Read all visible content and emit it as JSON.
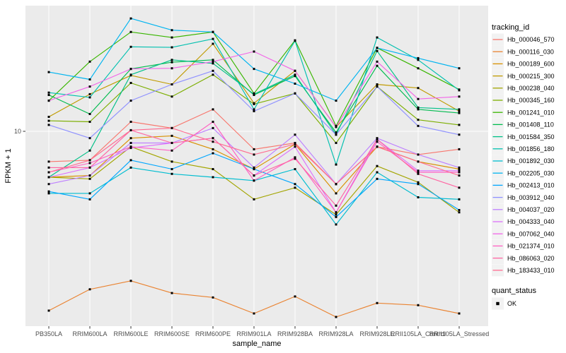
{
  "chart_data": {
    "type": "line",
    "title": "",
    "xlabel": "sample_name",
    "ylabel": "FPKM + 1",
    "y_scale": "log10",
    "y_tick_labels": [
      "10"
    ],
    "ylim": [
      1.7,
      31
    ],
    "grid": "on",
    "panel_bg": "#EBEBEB",
    "grid_color": "#FFFFFF",
    "tick_label_color": "#4D4D4D",
    "point_color": "#000000",
    "legend_position": "right",
    "legend_title": "tracking_id",
    "quant_legend": {
      "title": "quant_status",
      "items": [
        "OK"
      ]
    },
    "categories": [
      "PB350LA",
      "RRIM600LA",
      "RRIM600LE",
      "RRIM600SE",
      "RRIM600PE",
      "RRIM901LA",
      "RRIM928BA",
      "RRIM928LA",
      "RRIM928LE",
      "RRII105LA_Control",
      "RRII105LA_Stressed"
    ],
    "series": [
      {
        "name": "Hb_000046_570",
        "color": "#F8766D",
        "values": [
          7.6,
          7.7,
          10.9,
          10.3,
          12.2,
          8.5,
          9.0,
          6.2,
          8.7,
          8.1,
          8.5
        ]
      },
      {
        "name": "Hb_000116_030",
        "color": "#EA8331",
        "values": [
          1.97,
          2.39,
          2.58,
          2.31,
          2.22,
          1.92,
          2.24,
          1.86,
          2.11,
          2.07,
          1.92
        ]
      },
      {
        "name": "Hb_000189_600",
        "color": "#D89000",
        "values": [
          6.6,
          6.7,
          9.4,
          9.6,
          8.5,
          7.1,
          8.9,
          5.7,
          8.7,
          7.6,
          7.1
        ]
      },
      {
        "name": "Hb_000215_300",
        "color": "#C09B00",
        "values": [
          11.4,
          14.0,
          16.6,
          15.3,
          22.1,
          12.9,
          17.3,
          10.4,
          15.3,
          14.8,
          12.0
        ]
      },
      {
        "name": "Hb_000238_040",
        "color": "#A3A500",
        "values": [
          6.6,
          6.5,
          8.7,
          7.6,
          7.1,
          5.4,
          6.0,
          4.7,
          7.3,
          6.3,
          4.8
        ]
      },
      {
        "name": "Hb_000345_160",
        "color": "#7CAE00",
        "values": [
          11.0,
          10.9,
          15.5,
          13.7,
          16.7,
          12.8,
          14.1,
          9.0,
          15.0,
          11.1,
          10.6
        ]
      },
      {
        "name": "Hb_001241_010",
        "color": "#39B600",
        "values": [
          13.2,
          18.8,
          24.6,
          23.4,
          24.6,
          14.1,
          22.8,
          10.5,
          21.3,
          17.7,
          14.6
        ]
      },
      {
        "name": "Hb_001408_110",
        "color": "#00BB4E",
        "values": [
          13.9,
          11.7,
          17.6,
          18.7,
          19.1,
          13.9,
          16.5,
          9.9,
          18.1,
          12.2,
          11.8
        ]
      },
      {
        "name": "Hb_001584_350",
        "color": "#00C087",
        "values": [
          6.6,
          8.4,
          16.7,
          19.1,
          18.5,
          14.0,
          16.7,
          9.7,
          20.7,
          12.4,
          12.2
        ]
      },
      {
        "name": "Hb_001856_180",
        "color": "#00C0AF",
        "values": [
          14.2,
          13.6,
          21.5,
          21.4,
          23.1,
          12.2,
          22.7,
          7.4,
          23.4,
          19.1,
          14.5
        ]
      },
      {
        "name": "Hb_001892_030",
        "color": "#00BDD0",
        "values": [
          5.7,
          5.7,
          7.2,
          6.8,
          6.6,
          6.4,
          7.1,
          4.3,
          6.9,
          5.5,
          5.4
        ]
      },
      {
        "name": "Hb_002205_030",
        "color": "#00B4F0",
        "values": [
          17.1,
          16.0,
          27.8,
          25.0,
          24.6,
          17.6,
          15.4,
          13.2,
          21.3,
          19.4,
          17.7
        ]
      },
      {
        "name": "Hb_002413_010",
        "color": "#00A6FF",
        "values": [
          5.8,
          5.4,
          7.7,
          7.1,
          8.2,
          7.1,
          6.2,
          4.6,
          6.5,
          6.2,
          4.9
        ]
      },
      {
        "name": "Hb_003912_040",
        "color": "#8F91FF",
        "values": [
          10.6,
          9.4,
          13.2,
          15.3,
          17.3,
          12.0,
          14.1,
          9.7,
          15.0,
          10.5,
          9.7
        ]
      },
      {
        "name": "Hb_004037_020",
        "color": "#BE80FF",
        "values": [
          6.2,
          6.7,
          9.0,
          9.0,
          10.3,
          7.2,
          9.7,
          6.2,
          9.4,
          8.1,
          7.2
        ]
      },
      {
        "name": "Hb_004333_040",
        "color": "#DD71FB",
        "values": [
          6.6,
          7.2,
          8.6,
          9.0,
          9.4,
          6.7,
          8.7,
          4.8,
          9.3,
          7.0,
          7.0
        ]
      },
      {
        "name": "Hb_007062_040",
        "color": "#F265E8",
        "values": [
          13.2,
          15.0,
          17.6,
          17.7,
          18.8,
          20.6,
          17.3,
          10.4,
          18.8,
          13.4,
          13.7
        ]
      },
      {
        "name": "Hb_021374_010",
        "color": "#FF61C3",
        "values": [
          6.9,
          7.5,
          8.7,
          8.4,
          10.9,
          6.4,
          7.9,
          4.8,
          9.1,
          6.9,
          6.9
        ]
      },
      {
        "name": "Hb_086063_020",
        "color": "#FF66A3",
        "values": [
          7.2,
          7.2,
          10.1,
          9.0,
          9.4,
          6.7,
          7.8,
          5.1,
          9.3,
          6.8,
          6.0
        ]
      },
      {
        "name": "Hb_183433_010",
        "color": "#FF6C91",
        "values": [
          6.9,
          7.7,
          10.1,
          10.3,
          9.1,
          8.1,
          8.9,
          6.2,
          8.7,
          7.6,
          6.7
        ]
      }
    ]
  }
}
